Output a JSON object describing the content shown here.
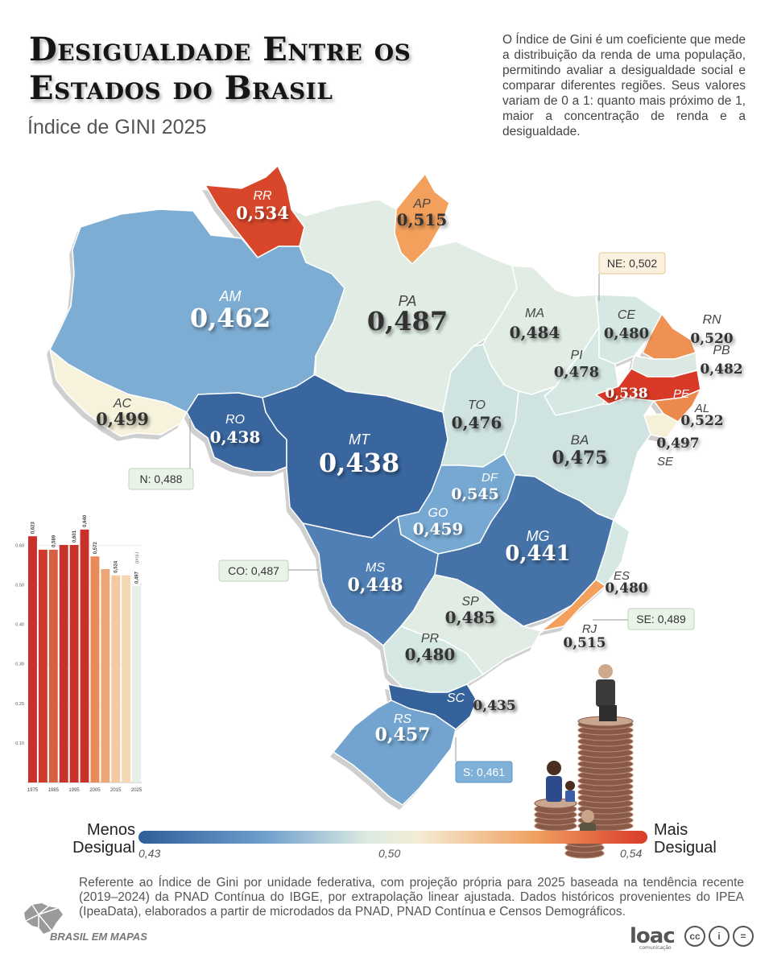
{
  "header": {
    "title": "Desigualdade Entre os Estados do Brasil",
    "subtitle": "Índice de GINI 2025",
    "description": "O Índice de Gini é um coeficiente que mede a distribuição da renda de uma população, permitindo avaliar a desigualdade social e comparar diferentes regiões. Seus valores variam de 0 a 1: quanto mais próximo de 1, maior a concentração de renda e a desigualdade."
  },
  "colors": {
    "low": "#2e5d99",
    "mid": "#e7f1e8",
    "high": "#d93a27"
  },
  "states": [
    {
      "uf": "RR",
      "value": "0,534",
      "color": "#d9472b"
    },
    {
      "uf": "AP",
      "value": "0,515",
      "color": "#f2a05c"
    },
    {
      "uf": "AM",
      "value": "0,462",
      "color": "#7eadd3"
    },
    {
      "uf": "PA",
      "value": "0,487",
      "color": "#e0ece4"
    },
    {
      "uf": "AC",
      "value": "0,499",
      "color": "#f6f2dc"
    },
    {
      "uf": "RO",
      "value": "0,438",
      "color": "#39669e"
    },
    {
      "uf": "MT",
      "value": "0,438",
      "color": "#39669e"
    },
    {
      "uf": "MA",
      "value": "0,484",
      "color": "#e0ece4"
    },
    {
      "uf": "PI",
      "value": "0,478",
      "color": "#d6e8e3"
    },
    {
      "uf": "CE",
      "value": "0,480",
      "color": "#d6e8e3"
    },
    {
      "uf": "RN",
      "value": "0,520",
      "color": "#ee9152"
    },
    {
      "uf": "PB",
      "value": "0,482",
      "color": "#dce9e2"
    },
    {
      "uf": "PE",
      "value": "0,538",
      "color": "#d93a27"
    },
    {
      "uf": "AL",
      "value": "0,522",
      "color": "#ec8a4e"
    },
    {
      "uf": "SE",
      "value": "0,497",
      "color": "#f6f0d8"
    },
    {
      "uf": "TO",
      "value": "0,476",
      "color": "#cfe3e1"
    },
    {
      "uf": "BA",
      "value": "0,475",
      "color": "#cfe3e1"
    },
    {
      "uf": "DF",
      "value": "0,545",
      "color": "#cc2a22"
    },
    {
      "uf": "GO",
      "value": "0,459",
      "color": "#77a8d2"
    },
    {
      "uf": "MG",
      "value": "0,441",
      "color": "#4573a8"
    },
    {
      "uf": "MS",
      "value": "0,448",
      "color": "#4f7fb4"
    },
    {
      "uf": "ES",
      "value": "0,480",
      "color": "#d6e8e3"
    },
    {
      "uf": "SP",
      "value": "0,485",
      "color": "#e0ece4"
    },
    {
      "uf": "RJ",
      "value": "0,515",
      "color": "#f2a05c"
    },
    {
      "uf": "PR",
      "value": "0,480",
      "color": "#d6e8e3"
    },
    {
      "uf": "SC",
      "value": "0,435",
      "color": "#35629b"
    },
    {
      "uf": "RS",
      "value": "0,457",
      "color": "#72a4cf"
    }
  ],
  "regions": [
    {
      "id": "NE",
      "label": "NE: 0,502",
      "bg": "#fbf1de",
      "border": "#e6c690"
    },
    {
      "id": "N",
      "label": "N: 0,488",
      "bg": "#e9f3e8",
      "border": "#bcd6b9"
    },
    {
      "id": "CO",
      "label": "CO: 0,487",
      "bg": "#e9f3e8",
      "border": "#bcd6b9"
    },
    {
      "id": "SE",
      "label": "SE: 0,489",
      "bg": "#e9f3e8",
      "border": "#bcd6b9"
    },
    {
      "id": "S",
      "label": "S: 0,461",
      "bg": "#7fb0d8",
      "border": "#5f93c2"
    }
  ],
  "chart_data": {
    "type": "bar",
    "categories": [
      "1975",
      "1980",
      "1985",
      "1990",
      "1995",
      "2000",
      "2005",
      "2010",
      "2015",
      "2020",
      "2025"
    ],
    "values": [
      0.623,
      0.589,
      0.589,
      0.601,
      0.601,
      0.64,
      0.572,
      0.54,
      0.524,
      0.524,
      0.497
    ],
    "data_labels": [
      "0,623",
      "",
      "0,589",
      "",
      "0,601",
      "0,640",
      "0,572",
      "",
      "0,524",
      "",
      "0,497"
    ],
    "annotations": {
      "0,640": "(pico)",
      "0,497": "(proj.)"
    },
    "x_tick_labels": [
      "1975",
      "1985",
      "1995",
      "2005",
      "2015",
      "2025"
    ],
    "y_tick_labels": [
      "0.60",
      "0.50",
      "0.40",
      "0.30",
      "0.20",
      "0.10"
    ],
    "ylim": [
      0,
      0.66
    ],
    "colors": [
      "#c8322a",
      "#cf3a2d",
      "#d95f43",
      "#c8322a",
      "#c8322a",
      "#c8322a",
      "#e98a5a",
      "#eda678",
      "#f4c99f",
      "#f5d7b3",
      "#e6f0e6"
    ]
  },
  "legend": {
    "left_label": "Menos Desigual",
    "right_label": "Mais Desigual",
    "ticks": [
      "0,43",
      "0,50",
      "0,54"
    ]
  },
  "footnote": "Referente ao Índice de Gini por unidade federativa, com projeção própria para 2025 baseada na tendência recente (2019–2024) da PNAD Contínua do IBGE, por extrapolação linear ajustada. Dados históricos provenientes do IPEA (IpeaData), elaborados a partir de microdados da PNAD, PNAD Contínua e Censos Demográficos.",
  "credits": {
    "brand": "BRASIL EM MAPAS",
    "partner": "loac",
    "partner_sub": "comunicação",
    "license": [
      "cc",
      "i",
      "="
    ]
  }
}
